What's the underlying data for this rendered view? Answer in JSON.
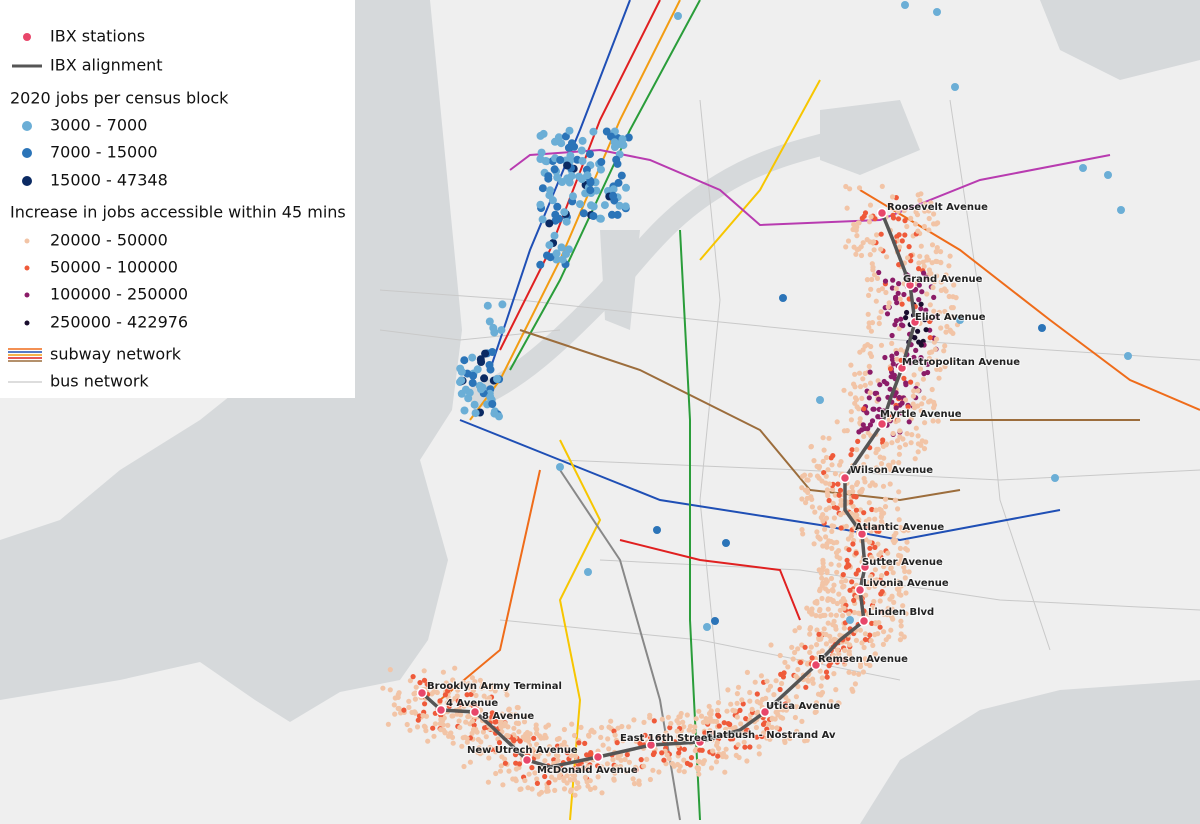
{
  "legend": {
    "stations": "IBX stations",
    "alignment": "IBX alignment",
    "jobs_title": "2020 jobs per census block",
    "jobs_classes": [
      "3000 - 7000",
      "7000 - 15000",
      "15000 - 47348"
    ],
    "access_title": "Increase in jobs accessible within 45 mins",
    "access_classes": [
      "20000 - 50000",
      "50000 - 100000",
      "100000 - 250000",
      "250000 - 422976"
    ],
    "subway": "subway network",
    "bus": "bus network"
  },
  "stations": [
    {
      "label": "Roosevelt Avenue"
    },
    {
      "label": "Grand Avenue"
    },
    {
      "label": "Eliot Avenue"
    },
    {
      "label": "Metropolitan Avenue"
    },
    {
      "label": "Myrtle Avenue"
    },
    {
      "label": "Wilson Avenue"
    },
    {
      "label": "Atlantic Avenue"
    },
    {
      "label": "Sutter Avenue"
    },
    {
      "label": "Livonia Avenue"
    },
    {
      "label": "Linden Blvd"
    },
    {
      "label": "Remsen Avenue"
    },
    {
      "label": "Utica Avenue"
    },
    {
      "label": "Flatbush - Nostrand Av"
    },
    {
      "label": "East 16th Street"
    },
    {
      "label": "McDonald Avenue"
    },
    {
      "label": "New Utrech Avenue"
    },
    {
      "label": "8 Avenue"
    },
    {
      "label": "4 Avenue"
    },
    {
      "label": "Brooklyn Army Terminal"
    }
  ]
}
